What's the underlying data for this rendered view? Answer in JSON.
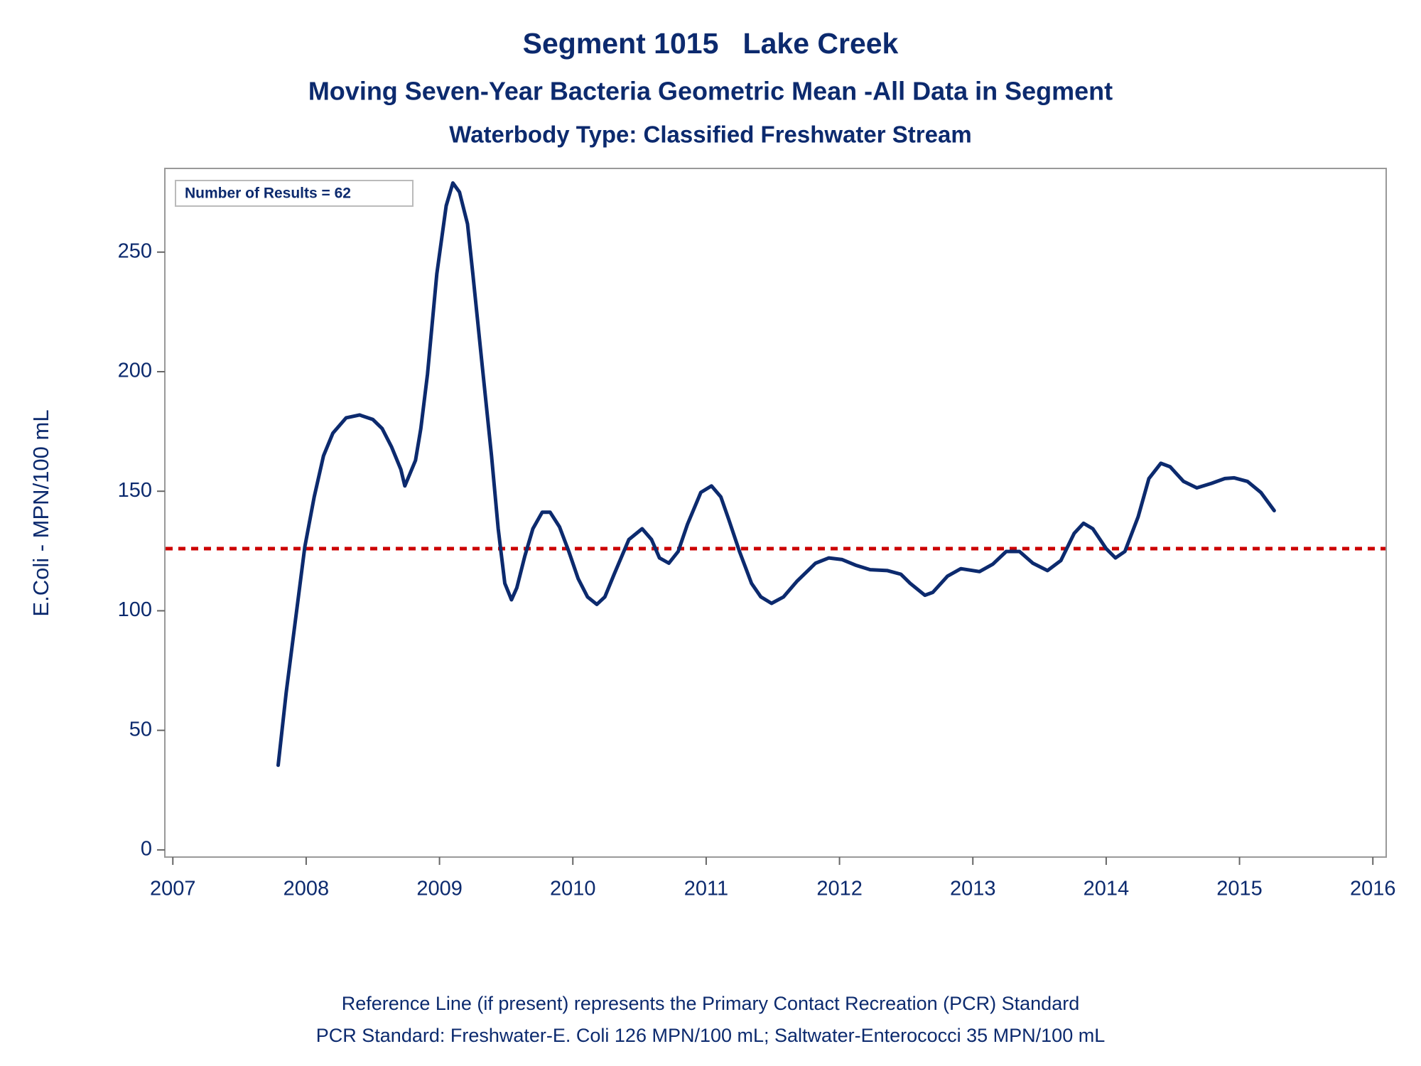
{
  "chart_data": {
    "type": "line",
    "title": "Segment 1015   Lake Creek",
    "subtitles": [
      "Moving Seven-Year Bacteria Geometric Mean -All Data in Segment",
      "Waterbody Type: Classified Freshwater Stream"
    ],
    "y_label": "E.Coli - MPN/100 mL",
    "annotation": "Number of Results = 62",
    "footnotes": [
      "Reference Line (if present) represents the Primary Contact Recreation (PCR) Standard",
      "PCR Standard: Freshwater-E. Coli 126 MPN/100 mL; Saltwater-Enterococci 35 MPN/100 mL"
    ],
    "reference_line": {
      "value": 126,
      "color": "#cc0000",
      "style": "dashed"
    },
    "xlim": [
      2006.94,
      2016.1
    ],
    "xticks": [
      2007,
      2008,
      2009,
      2010,
      2011,
      2012,
      2013,
      2014,
      2015,
      2016
    ],
    "ylim": [
      -3,
      285
    ],
    "yticks": [
      0,
      50,
      100,
      150,
      200,
      250
    ],
    "grid": false,
    "x": [
      2007.79,
      2007.85,
      2007.92,
      2007.99,
      2008.06,
      2008.13,
      2008.2,
      2008.3,
      2008.4,
      2008.5,
      2008.57,
      2008.64,
      2008.71,
      2008.74,
      2008.82,
      2008.86,
      2008.91,
      2008.98,
      2009.05,
      2009.1,
      2009.15,
      2009.21,
      2009.25,
      2009.32,
      2009.39,
      2009.44,
      2009.49,
      2009.54,
      2009.58,
      2009.64,
      2009.7,
      2009.77,
      2009.83,
      2009.9,
      2009.97,
      2010.04,
      2010.11,
      2010.18,
      2010.24,
      2010.31,
      2010.42,
      2010.52,
      2010.59,
      2010.65,
      2010.72,
      2010.79,
      2010.86,
      2010.96,
      2011.04,
      2011.11,
      2011.17,
      2011.25,
      2011.34,
      2011.41,
      2011.49,
      2011.58,
      2011.68,
      2011.82,
      2011.92,
      2012.02,
      2012.12,
      2012.23,
      2012.36,
      2012.46,
      2012.53,
      2012.64,
      2012.7,
      2012.81,
      2012.91,
      2013.05,
      2013.15,
      2013.25,
      2013.35,
      2013.45,
      2013.56,
      2013.66,
      2013.76,
      2013.83,
      2013.9,
      2014.0,
      2014.07,
      2014.14,
      2014.24,
      2014.32,
      2014.41,
      2014.48,
      2014.58,
      2014.68,
      2014.79,
      2014.89,
      2014.96,
      2015.06,
      2015.16,
      2015.26
    ],
    "series": [
      {
        "name": "Geometric Mean",
        "color": "#0c2a6e",
        "values": [
          35.4,
          65.8,
          96.3,
          126.7,
          147.6,
          164.8,
          174.3,
          180.7,
          181.9,
          180,
          176.2,
          168.6,
          159.1,
          152.2,
          162.9,
          176.2,
          199,
          240.9,
          269.4,
          278.9,
          275.1,
          261.8,
          240.9,
          202.8,
          164.8,
          134.3,
          111.5,
          104.6,
          109.6,
          122.9,
          134.3,
          141.2,
          141.2,
          135.1,
          124.8,
          113.4,
          105.8,
          102.7,
          105.8,
          115.3,
          129.8,
          134.3,
          129.8,
          122.1,
          119.9,
          124.8,
          136.2,
          149.5,
          152.2,
          147.6,
          138.1,
          124.8,
          111.5,
          105.8,
          103.1,
          105.8,
          112.3,
          119.9,
          122.1,
          121.4,
          119.1,
          117.2,
          116.8,
          115.3,
          111.5,
          106.5,
          107.7,
          114.5,
          117.6,
          116.4,
          119.5,
          124.8,
          124.8,
          119.9,
          116.8,
          121,
          132.4,
          136.6,
          134.3,
          126,
          122.1,
          124.8,
          139.3,
          155.3,
          161.7,
          160.2,
          154.1,
          151.4,
          153.3,
          155.3,
          155.6,
          154.1,
          149.5,
          141.9
        ]
      }
    ]
  }
}
